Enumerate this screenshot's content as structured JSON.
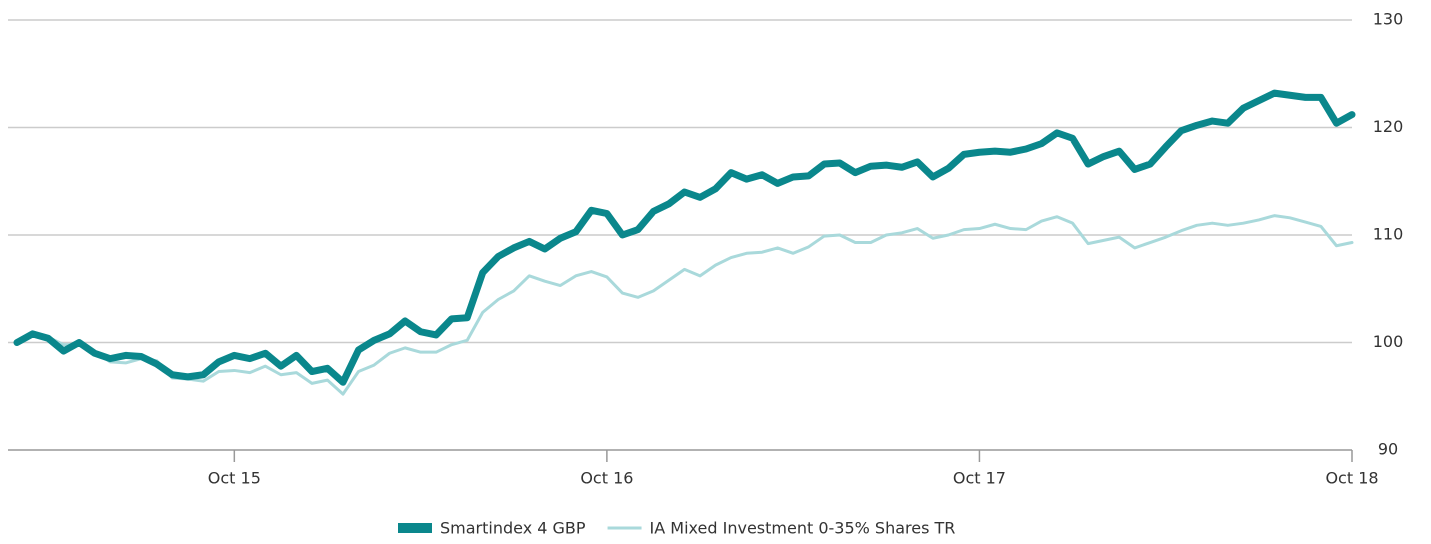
{
  "chart_data": {
    "type": "line",
    "categories": [
      null,
      null,
      null,
      null,
      null,
      null,
      null,
      null,
      null,
      null,
      null,
      null,
      null,
      null,
      "Oct 15",
      null,
      null,
      null,
      null,
      null,
      null,
      null,
      null,
      null,
      null,
      null,
      null,
      null,
      null,
      null,
      null,
      null,
      null,
      null,
      null,
      null,
      null,
      null,
      "Oct 16",
      null,
      null,
      null,
      null,
      null,
      null,
      null,
      null,
      null,
      null,
      null,
      null,
      null,
      null,
      null,
      null,
      null,
      null,
      null,
      null,
      null,
      null,
      null,
      "Oct 17",
      null,
      null,
      null,
      null,
      null,
      null,
      null,
      null,
      null,
      null,
      null,
      null,
      null,
      null,
      null,
      null,
      null,
      null,
      null,
      null,
      null,
      null,
      null,
      "Oct 18"
    ],
    "series": [
      {
        "name": "Smartindex 4 GBP",
        "color": "#0a878c",
        "values": [
          100,
          100.8,
          100.4,
          99.2,
          100,
          99,
          98.5,
          98.8,
          98.7,
          98,
          97,
          96.8,
          97,
          98.2,
          98.8,
          98.5,
          99,
          97.8,
          98.8,
          97.3,
          97.6,
          96.3,
          99.3,
          100.2,
          100.8,
          102,
          101,
          100.7,
          102.2,
          102.3,
          106.5,
          108,
          108.8,
          109.4,
          108.7,
          109.7,
          110.3,
          112.3,
          112,
          110,
          110.5,
          112.2,
          112.9,
          114,
          113.5,
          114.3,
          115.8,
          115.2,
          115.6,
          114.8,
          115.4,
          115.5,
          116.6,
          116.7,
          115.8,
          116.4,
          116.5,
          116.3,
          116.8,
          115.4,
          116.2,
          117.5,
          117.7,
          117.8,
          117.7,
          118,
          118.5,
          119.5,
          119,
          116.6,
          117.3,
          117.8,
          116.1,
          116.6,
          118.2,
          119.7,
          120.2,
          120.6,
          120.4,
          121.8,
          122.5,
          123.2,
          123,
          122.8,
          122.8,
          120.4,
          121.2
        ]
      },
      {
        "name": "IA Mixed Investment 0-35% Shares TR",
        "color": "#a9d9db",
        "values": [
          100,
          101,
          100.5,
          99.8,
          99.8,
          99.2,
          98.2,
          98.1,
          98.5,
          98.3,
          96.7,
          96.6,
          96.4,
          97.3,
          97.4,
          97.2,
          97.8,
          97,
          97.2,
          96.2,
          96.5,
          95.2,
          97.3,
          97.9,
          99,
          99.5,
          99.1,
          99.1,
          99.8,
          100.2,
          102.8,
          104,
          104.8,
          106.2,
          105.7,
          105.3,
          106.2,
          106.6,
          106.1,
          104.6,
          104.2,
          104.8,
          105.8,
          106.8,
          106.2,
          107.2,
          107.9,
          108.3,
          108.4,
          108.8,
          108.3,
          108.9,
          109.9,
          110,
          109.3,
          109.3,
          110,
          110.2,
          110.6,
          109.7,
          110,
          110.5,
          110.6,
          111,
          110.6,
          110.5,
          111.3,
          111.7,
          111.1,
          109.2,
          109.5,
          109.8,
          108.8,
          109.3,
          109.8,
          110.4,
          110.9,
          111.1,
          110.9,
          111.1,
          111.4,
          111.8,
          111.6,
          111.2,
          110.8,
          109,
          109.3
        ]
      }
    ],
    "ylim": [
      90,
      130
    ],
    "yticks": [
      90,
      100,
      110,
      120,
      130
    ],
    "grid": true,
    "legend": "bottom"
  }
}
